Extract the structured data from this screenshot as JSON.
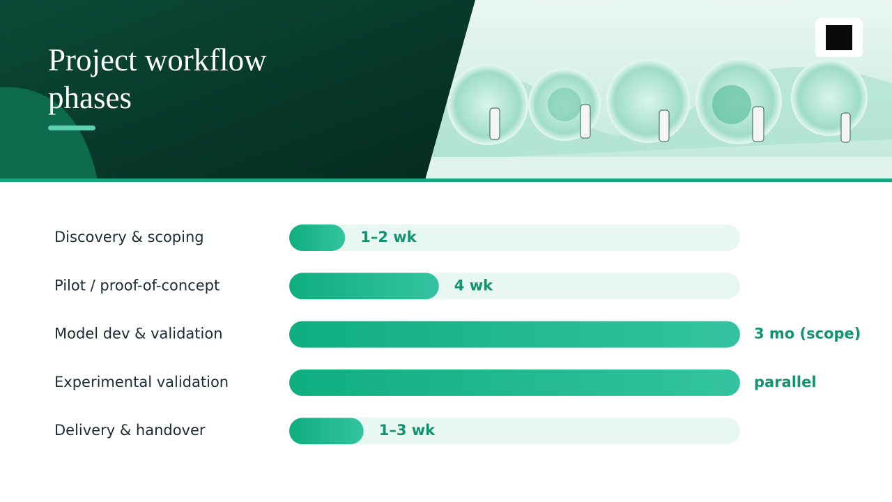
{
  "header": {
    "title": "Project workflow phases"
  },
  "phases": [
    {
      "label": "Discovery & scoping",
      "duration": "1–2 wk",
      "fill": 12.4
    },
    {
      "label": "Pilot / proof-of-concept",
      "duration": "4 wk",
      "fill": 33.2
    },
    {
      "label": "Model dev & validation",
      "duration": "3 mo (scope)",
      "fill": 100
    },
    {
      "label": "Experimental validation",
      "duration": "parallel",
      "fill": 100
    },
    {
      "label": "Delivery & handover",
      "duration": "1–3 wk",
      "fill": 16.5
    }
  ]
}
